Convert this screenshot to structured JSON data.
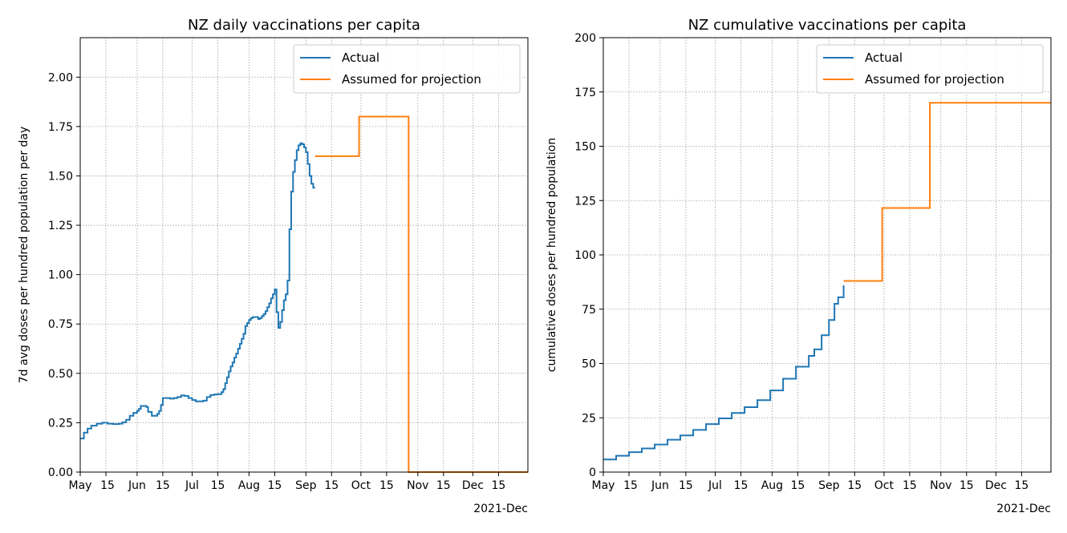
{
  "chart_data": [
    {
      "type": "line",
      "title": "NZ daily vaccinations per capita",
      "xlabel": "",
      "ylabel": "7d avg doses per hundred population per day",
      "x_axis_type": "date",
      "xlim": [
        "2021-05-01",
        "2021-12-31"
      ],
      "ylim": [
        0,
        2.2
      ],
      "x_ticks": [
        {
          "date": "2021-05-01",
          "label": "May"
        },
        {
          "date": "2021-05-15",
          "label": "15"
        },
        {
          "date": "2021-06-01",
          "label": "Jun"
        },
        {
          "date": "2021-06-15",
          "label": "15"
        },
        {
          "date": "2021-07-01",
          "label": "Jul"
        },
        {
          "date": "2021-07-15",
          "label": "15"
        },
        {
          "date": "2021-08-01",
          "label": "Aug"
        },
        {
          "date": "2021-08-15",
          "label": "15"
        },
        {
          "date": "2021-09-01",
          "label": "Sep"
        },
        {
          "date": "2021-09-15",
          "label": "15"
        },
        {
          "date": "2021-10-01",
          "label": "Oct"
        },
        {
          "date": "2021-10-15",
          "label": "15"
        },
        {
          "date": "2021-11-01",
          "label": "Nov"
        },
        {
          "date": "2021-11-15",
          "label": "15"
        },
        {
          "date": "2021-12-01",
          "label": "Dec"
        },
        {
          "date": "2021-12-15",
          "label": "15"
        }
      ],
      "x_offset_label": "2021-Dec",
      "y_ticks": [
        {
          "value": 0,
          "label": "0.00"
        },
        {
          "value": 0.25,
          "label": "0.25"
        },
        {
          "value": 0.5,
          "label": "0.50"
        },
        {
          "value": 0.75,
          "label": "0.75"
        },
        {
          "value": 1.0,
          "label": "1.00"
        },
        {
          "value": 1.25,
          "label": "1.25"
        },
        {
          "value": 1.5,
          "label": "1.50"
        },
        {
          "value": 1.75,
          "label": "1.75"
        },
        {
          "value": 2.0,
          "label": "2.00"
        }
      ],
      "grid": true,
      "grid_style": "dotted",
      "legend_position": "top-right",
      "step": true,
      "series": [
        {
          "name": "Actual",
          "color": "#1f77b4",
          "points": [
            [
              "2021-05-01",
              0.17
            ],
            [
              "2021-05-03",
              0.2
            ],
            [
              "2021-05-05",
              0.22
            ],
            [
              "2021-05-07",
              0.235
            ],
            [
              "2021-05-10",
              0.245
            ],
            [
              "2021-05-13",
              0.25
            ],
            [
              "2021-05-16",
              0.245
            ],
            [
              "2021-05-19",
              0.243
            ],
            [
              "2021-05-22",
              0.245
            ],
            [
              "2021-05-24",
              0.252
            ],
            [
              "2021-05-26",
              0.265
            ],
            [
              "2021-05-28",
              0.285
            ],
            [
              "2021-05-30",
              0.3
            ],
            [
              "2021-06-01",
              0.31
            ],
            [
              "2021-06-02",
              0.32
            ],
            [
              "2021-06-03",
              0.335
            ],
            [
              "2021-06-06",
              0.33
            ],
            [
              "2021-06-07",
              0.305
            ],
            [
              "2021-06-09",
              0.285
            ],
            [
              "2021-06-11",
              0.285
            ],
            [
              "2021-06-12",
              0.295
            ],
            [
              "2021-06-13",
              0.31
            ],
            [
              "2021-06-14",
              0.34
            ],
            [
              "2021-06-15",
              0.375
            ],
            [
              "2021-06-17",
              0.375
            ],
            [
              "2021-06-19",
              0.372
            ],
            [
              "2021-06-21",
              0.375
            ],
            [
              "2021-06-23",
              0.38
            ],
            [
              "2021-06-25",
              0.388
            ],
            [
              "2021-06-27",
              0.385
            ],
            [
              "2021-06-29",
              0.375
            ],
            [
              "2021-07-01",
              0.365
            ],
            [
              "2021-07-03",
              0.358
            ],
            [
              "2021-07-05",
              0.358
            ],
            [
              "2021-07-07",
              0.362
            ],
            [
              "2021-07-09",
              0.38
            ],
            [
              "2021-07-11",
              0.39
            ],
            [
              "2021-07-13",
              0.393
            ],
            [
              "2021-07-15",
              0.395
            ],
            [
              "2021-07-17",
              0.405
            ],
            [
              "2021-07-18",
              0.42
            ],
            [
              "2021-07-19",
              0.45
            ],
            [
              "2021-07-20",
              0.48
            ],
            [
              "2021-07-21",
              0.51
            ],
            [
              "2021-07-22",
              0.535
            ],
            [
              "2021-07-23",
              0.555
            ],
            [
              "2021-07-24",
              0.58
            ],
            [
              "2021-07-25",
              0.6
            ],
            [
              "2021-07-26",
              0.625
            ],
            [
              "2021-07-27",
              0.65
            ],
            [
              "2021-07-28",
              0.675
            ],
            [
              "2021-07-29",
              0.7
            ],
            [
              "2021-07-30",
              0.74
            ],
            [
              "2021-07-31",
              0.755
            ],
            [
              "2021-08-01",
              0.77
            ],
            [
              "2021-08-02",
              0.78
            ],
            [
              "2021-08-03",
              0.785
            ],
            [
              "2021-08-05",
              0.785
            ],
            [
              "2021-08-06",
              0.775
            ],
            [
              "2021-08-07",
              0.78
            ],
            [
              "2021-08-08",
              0.79
            ],
            [
              "2021-08-09",
              0.8
            ],
            [
              "2021-08-10",
              0.815
            ],
            [
              "2021-08-11",
              0.835
            ],
            [
              "2021-08-12",
              0.855
            ],
            [
              "2021-08-13",
              0.88
            ],
            [
              "2021-08-14",
              0.9
            ],
            [
              "2021-08-15",
              0.925
            ],
            [
              "2021-08-16",
              0.81
            ],
            [
              "2021-08-17",
              0.73
            ],
            [
              "2021-08-18",
              0.76
            ],
            [
              "2021-08-19",
              0.82
            ],
            [
              "2021-08-20",
              0.87
            ],
            [
              "2021-08-21",
              0.9
            ],
            [
              "2021-08-22",
              0.97
            ],
            [
              "2021-08-23",
              1.23
            ],
            [
              "2021-08-24",
              1.42
            ],
            [
              "2021-08-25",
              1.52
            ],
            [
              "2021-08-26",
              1.58
            ],
            [
              "2021-08-27",
              1.63
            ],
            [
              "2021-08-28",
              1.655
            ],
            [
              "2021-08-29",
              1.665
            ],
            [
              "2021-08-30",
              1.66
            ],
            [
              "2021-08-31",
              1.645
            ],
            [
              "2021-09-01",
              1.62
            ],
            [
              "2021-09-02",
              1.56
            ],
            [
              "2021-09-03",
              1.5
            ],
            [
              "2021-09-04",
              1.46
            ],
            [
              "2021-09-05",
              1.44
            ],
            [
              "2021-09-06",
              1.44
            ]
          ]
        },
        {
          "name": "Assumed for projection",
          "color": "#ff7f0e",
          "points": [
            [
              "2021-09-06",
              1.6
            ],
            [
              "2021-09-30",
              1.6
            ],
            [
              "2021-09-30",
              1.8
            ],
            [
              "2021-10-27",
              1.8
            ],
            [
              "2021-10-27",
              0.0
            ],
            [
              "2021-12-31",
              0.0
            ]
          ]
        }
      ]
    },
    {
      "type": "line",
      "title": "NZ cumulative vaccinations per capita",
      "xlabel": "",
      "ylabel": "cumulative doses per hundred population",
      "x_axis_type": "date",
      "xlim": [
        "2021-05-01",
        "2021-12-31"
      ],
      "ylim": [
        0,
        200
      ],
      "x_ticks": [
        {
          "date": "2021-05-01",
          "label": "May"
        },
        {
          "date": "2021-05-15",
          "label": "15"
        },
        {
          "date": "2021-06-01",
          "label": "Jun"
        },
        {
          "date": "2021-06-15",
          "label": "15"
        },
        {
          "date": "2021-07-01",
          "label": "Jul"
        },
        {
          "date": "2021-07-15",
          "label": "15"
        },
        {
          "date": "2021-08-01",
          "label": "Aug"
        },
        {
          "date": "2021-08-15",
          "label": "15"
        },
        {
          "date": "2021-09-01",
          "label": "Sep"
        },
        {
          "date": "2021-09-15",
          "label": "15"
        },
        {
          "date": "2021-10-01",
          "label": "Oct"
        },
        {
          "date": "2021-10-15",
          "label": "15"
        },
        {
          "date": "2021-11-01",
          "label": "Nov"
        },
        {
          "date": "2021-11-15",
          "label": "15"
        },
        {
          "date": "2021-12-01",
          "label": "Dec"
        },
        {
          "date": "2021-12-15",
          "label": "15"
        }
      ],
      "x_offset_label": "2021-Dec",
      "y_ticks": [
        {
          "value": 0,
          "label": "0"
        },
        {
          "value": 25,
          "label": "25"
        },
        {
          "value": 50,
          "label": "50"
        },
        {
          "value": 75,
          "label": "75"
        },
        {
          "value": 100,
          "label": "100"
        },
        {
          "value": 125,
          "label": "125"
        },
        {
          "value": 150,
          "label": "150"
        },
        {
          "value": 175,
          "label": "175"
        },
        {
          "value": 200,
          "label": "200"
        }
      ],
      "grid": true,
      "grid_style": "dotted",
      "legend_position": "top-right",
      "step": true,
      "series": [
        {
          "name": "Actual",
          "color": "#1f77b4",
          "points": [
            [
              "2021-05-01",
              5.8
            ],
            [
              "2021-05-08",
              7.5
            ],
            [
              "2021-05-15",
              9.2
            ],
            [
              "2021-05-22",
              10.9
            ],
            [
              "2021-05-29",
              12.7
            ],
            [
              "2021-06-05",
              14.9
            ],
            [
              "2021-06-12",
              16.9
            ],
            [
              "2021-06-19",
              19.4
            ],
            [
              "2021-06-26",
              22.1
            ],
            [
              "2021-07-03",
              24.7
            ],
            [
              "2021-07-10",
              27.2
            ],
            [
              "2021-07-17",
              29.9
            ],
            [
              "2021-07-24",
              33.1
            ],
            [
              "2021-07-31",
              37.6
            ],
            [
              "2021-08-07",
              43.0
            ],
            [
              "2021-08-14",
              48.5
            ],
            [
              "2021-08-21",
              53.5
            ],
            [
              "2021-08-24",
              56.5
            ],
            [
              "2021-08-28",
              63.0
            ],
            [
              "2021-09-01",
              70.0
            ],
            [
              "2021-09-04",
              77.5
            ],
            [
              "2021-09-06",
              80.5
            ],
            [
              "2021-09-09",
              86.0
            ]
          ]
        },
        {
          "name": "Assumed for projection",
          "color": "#ff7f0e",
          "points": [
            [
              "2021-09-09",
              88.0
            ],
            [
              "2021-09-30",
              121.6
            ],
            [
              "2021-10-26",
              170.0
            ],
            [
              "2021-12-31",
              170.0
            ]
          ]
        }
      ]
    }
  ]
}
